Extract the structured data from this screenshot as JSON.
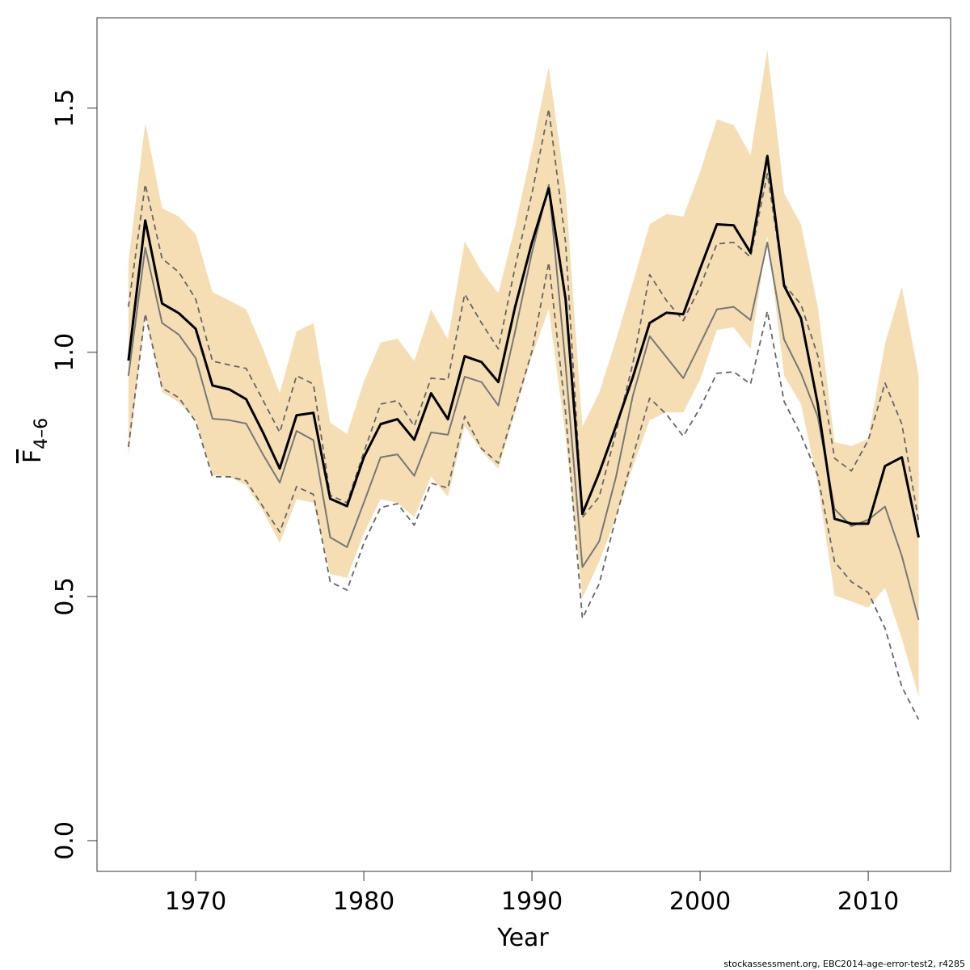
{
  "chart_data": {
    "type": "line",
    "xlabel": "Year",
    "ylabel": {
      "main": "F",
      "sub": "4–6"
    },
    "footer": "stockassessment.org, EBC2014-age-error-test2, r4285",
    "x": [
      1966,
      1967,
      1968,
      1969,
      1970,
      1971,
      1972,
      1973,
      1974,
      1975,
      1976,
      1977,
      1978,
      1979,
      1980,
      1981,
      1982,
      1983,
      1984,
      1985,
      1986,
      1987,
      1988,
      1989,
      1990,
      1991,
      1992,
      1993,
      1994,
      1995,
      1996,
      1997,
      1998,
      1999,
      2000,
      2001,
      2002,
      2003,
      2004,
      2005,
      2006,
      2007,
      2008,
      2009,
      2010,
      2011,
      2012,
      2013
    ],
    "band": {
      "color": "#f5deb3",
      "upper": [
        1.184,
        1.47,
        1.295,
        1.278,
        1.242,
        1.123,
        1.106,
        1.088,
        1.007,
        0.916,
        1.043,
        1.06,
        0.856,
        0.833,
        0.94,
        1.02,
        1.028,
        0.982,
        1.088,
        1.026,
        1.227,
        1.166,
        1.121,
        1.258,
        1.416,
        1.584,
        1.333,
        0.848,
        0.917,
        1.026,
        1.142,
        1.262,
        1.283,
        1.278,
        1.369,
        1.477,
        1.465,
        1.404,
        1.619,
        1.325,
        1.262,
        1.093,
        0.816,
        0.808,
        0.823,
        1.018,
        1.134,
        0.952
      ],
      "lower": [
        0.786,
        1.076,
        0.919,
        0.897,
        0.861,
        0.748,
        0.745,
        0.728,
        0.675,
        0.609,
        0.699,
        0.692,
        0.546,
        0.538,
        0.629,
        0.699,
        0.692,
        0.662,
        0.745,
        0.704,
        0.849,
        0.798,
        0.762,
        0.877,
        0.993,
        1.088,
        0.828,
        0.497,
        0.571,
        0.662,
        0.765,
        0.861,
        0.877,
        0.877,
        0.944,
        1.046,
        1.051,
        1.007,
        1.238,
        0.952,
        0.894,
        0.732,
        0.502,
        0.49,
        0.477,
        0.518,
        0.414,
        0.295
      ]
    },
    "series": [
      {
        "color": "#666666",
        "dash": true,
        "width": 1.8,
        "values": [
          1.093,
          1.344,
          1.192,
          1.164,
          1.109,
          0.982,
          0.974,
          0.967,
          0.902,
          0.836,
          0.952,
          0.935,
          0.707,
          0.692,
          0.795,
          0.894,
          0.901,
          0.849,
          0.947,
          0.944,
          1.119,
          1.06,
          1.007,
          1.175,
          1.325,
          1.498,
          1.225,
          0.662,
          0.704,
          0.836,
          0.977,
          1.159,
          1.106,
          1.065,
          1.134,
          1.222,
          1.225,
          1.195,
          1.366,
          1.139,
          1.098,
          0.993,
          0.783,
          0.757,
          0.82,
          0.937,
          0.853,
          0.654
        ]
      },
      {
        "color": "#666666",
        "dash": true,
        "width": 1.8,
        "values": [
          0.806,
          1.079,
          0.927,
          0.907,
          0.858,
          0.745,
          0.745,
          0.737,
          0.684,
          0.632,
          0.725,
          0.709,
          0.53,
          0.513,
          0.609,
          0.682,
          0.69,
          0.646,
          0.732,
          0.722,
          0.869,
          0.803,
          0.773,
          0.887,
          1.002,
          1.184,
          0.877,
          0.455,
          0.526,
          0.662,
          0.786,
          0.906,
          0.873,
          0.828,
          0.886,
          0.957,
          0.96,
          0.935,
          1.084,
          0.899,
          0.831,
          0.748,
          0.571,
          0.53,
          0.508,
          0.435,
          0.315,
          0.248
        ]
      },
      {
        "color": "#777777",
        "dash": false,
        "width": 2,
        "values": [
          0.952,
          1.214,
          1.06,
          1.036,
          0.988,
          0.864,
          0.861,
          0.854,
          0.791,
          0.733,
          0.839,
          0.82,
          0.621,
          0.601,
          0.692,
          0.785,
          0.791,
          0.747,
          0.836,
          0.831,
          0.95,
          0.939,
          0.891,
          1.043,
          1.204,
          1.343,
          0.974,
          0.56,
          0.613,
          0.745,
          0.911,
          1.033,
          0.99,
          0.947,
          1.017,
          1.088,
          1.093,
          1.066,
          1.225,
          1.026,
          0.957,
          0.868,
          0.679,
          0.644,
          0.657,
          0.684,
          0.583,
          0.452
        ]
      },
      {
        "color": "#000000",
        "dash": false,
        "width": 3,
        "values": [
          0.983,
          1.27,
          1.1,
          1.08,
          1.048,
          0.932,
          0.924,
          0.904,
          0.836,
          0.762,
          0.871,
          0.876,
          0.7,
          0.685,
          0.785,
          0.853,
          0.863,
          0.821,
          0.916,
          0.863,
          0.992,
          0.98,
          0.939,
          1.093,
          1.225,
          1.336,
          1.109,
          0.669,
          0.753,
          0.849,
          0.949,
          1.06,
          1.081,
          1.078,
          1.171,
          1.262,
          1.26,
          1.204,
          1.402,
          1.136,
          1.07,
          0.894,
          0.659,
          0.649,
          0.649,
          0.767,
          0.785,
          0.621
        ]
      }
    ],
    "xlim": [
      1964.13,
      2014.9
    ],
    "ylim": [
      -0.063,
      1.685
    ],
    "xticks": [
      1970,
      1980,
      1990,
      2000,
      2010
    ],
    "yticks": [
      {
        "value": 0,
        "label": "0.0"
      },
      0.5,
      {
        "value": 1,
        "label": "1.0"
      },
      1.5
    ],
    "grid": false
  }
}
